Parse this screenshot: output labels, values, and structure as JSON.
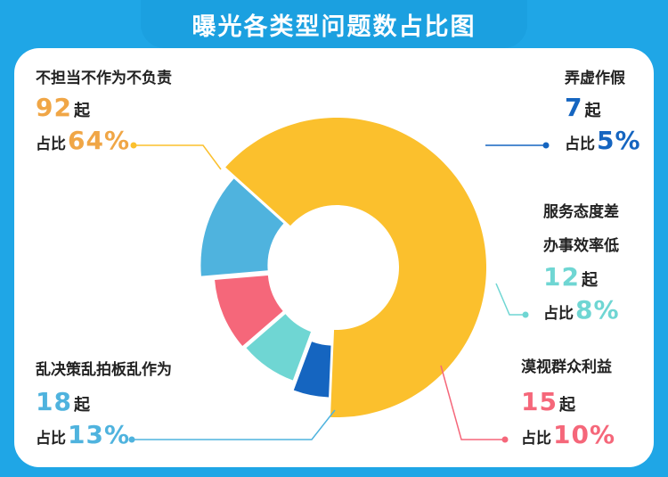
{
  "title": "曝光各类型问题数占比图",
  "unit": "起",
  "pct_prefix": "占比",
  "chart_data": {
    "type": "pie",
    "title": "曝光各类型问题数占比图",
    "slices": [
      {
        "label": "不担当不作为不负责",
        "count": "92",
        "percent": "64%",
        "value": 64,
        "color": "#fbc02d"
      },
      {
        "label": "弄虚作假",
        "count": "7",
        "percent": "5%",
        "value": 5,
        "color": "#1565c0"
      },
      {
        "label": "服务态度差办事效率低",
        "label_line1": "服务态度差",
        "label_line2": "办事效率低",
        "count": "12",
        "percent": "8%",
        "value": 8,
        "color": "#6fd6d3"
      },
      {
        "label": "漠视群众利益",
        "count": "15",
        "percent": "10%",
        "value": 10,
        "color": "#f5677a"
      },
      {
        "label": "乱决策乱拍板乱作为",
        "count": "18",
        "percent": "13%",
        "value": 13,
        "color": "#4fb3de"
      }
    ]
  },
  "colors": {
    "background": "#1fa6e6",
    "count_color": "#f0a646",
    "text": "#222222"
  }
}
